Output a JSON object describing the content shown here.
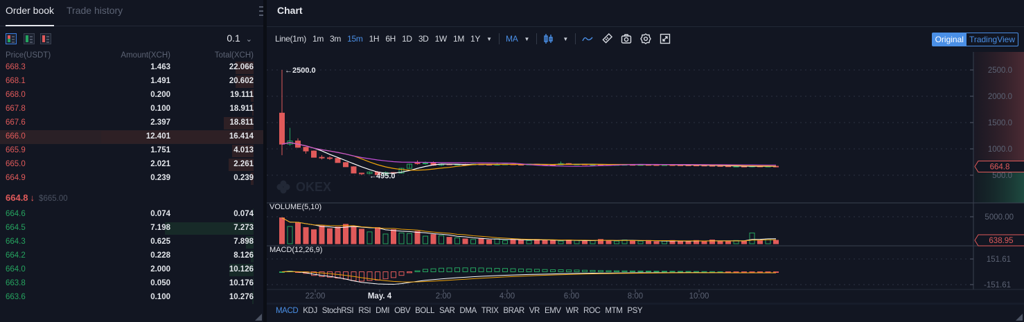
{
  "orderbook": {
    "tabs": [
      "Order book",
      "Trade history"
    ],
    "precision": "0.1",
    "headers": {
      "price": "Price(USDT)",
      "amount": "Amount(XCH)",
      "total": "Total(XCH)"
    },
    "asks": [
      {
        "price": "668.3",
        "amount": "1.463",
        "total": "22.066"
      },
      {
        "price": "668.1",
        "amount": "1.491",
        "total": "20.602"
      },
      {
        "price": "668.0",
        "amount": "0.200",
        "total": "19.111"
      },
      {
        "price": "667.8",
        "amount": "0.100",
        "total": "18.911"
      },
      {
        "price": "667.6",
        "amount": "2.397",
        "total": "18.811"
      },
      {
        "price": "666.0",
        "amount": "12.401",
        "total": "16.414"
      },
      {
        "price": "665.9",
        "amount": "1.751",
        "total": "4.013"
      },
      {
        "price": "665.0",
        "amount": "2.021",
        "total": "2.261"
      },
      {
        "price": "664.9",
        "amount": "0.239",
        "total": "0.239"
      }
    ],
    "last_price": "664.8",
    "last_direction": "↓",
    "last_usd": "$665.00",
    "bids": [
      {
        "price": "664.6",
        "amount": "0.074",
        "total": "0.074"
      },
      {
        "price": "664.5",
        "amount": "7.198",
        "total": "7.273"
      },
      {
        "price": "664.3",
        "amount": "0.625",
        "total": "7.898"
      },
      {
        "price": "664.2",
        "amount": "0.228",
        "total": "8.126"
      },
      {
        "price": "664.0",
        "amount": "2.000",
        "total": "10.126"
      },
      {
        "price": "663.8",
        "amount": "0.050",
        "total": "10.176"
      },
      {
        "price": "663.6",
        "amount": "0.100",
        "total": "10.276"
      }
    ],
    "colors": {
      "ask": "#e05a5a",
      "bid": "#25a35f"
    }
  },
  "chart": {
    "title": "Chart",
    "intervals": [
      "Line(1m)",
      "1m",
      "3m",
      "15m",
      "1H",
      "6H",
      "1D",
      "3D",
      "1W",
      "1M",
      "1Y"
    ],
    "active_interval": "15m",
    "indicator_main": "MA",
    "icons": [
      "candlestick-icon",
      "line-style-icon",
      "ruler-icon",
      "camera-icon",
      "gear-icon",
      "fullscreen-icon"
    ],
    "mode": {
      "original": "Original",
      "tradingview": "TradingView",
      "active": "Original"
    },
    "price_axis": [
      "2500.0",
      "2000.0",
      "1500.0",
      "1000.0",
      "500.0"
    ],
    "current_price_label": "664.8",
    "high_label": "2500.0",
    "low_label": "495.0",
    "watermark": "OKEX",
    "volume_label": "VOLUME(5,10)",
    "volume_axis": "5000.00",
    "volume_current": "638.95",
    "macd_label": "MACD(12,26,9)",
    "macd_axis": [
      "151.61",
      "-151.61"
    ],
    "time_axis": [
      "22:00",
      "May. 4",
      "2:00",
      "4:00",
      "6:00",
      "8:00",
      "10:00"
    ],
    "indicators": [
      "MACD",
      "KDJ",
      "StochRSI",
      "RSI",
      "DMI",
      "OBV",
      "BOLL",
      "SAR",
      "DMA",
      "TRIX",
      "BRAR",
      "VR",
      "EMV",
      "WR",
      "ROC",
      "MTM",
      "PSY"
    ],
    "active_indicator": "MACD",
    "colors": {
      "up": "#25a35f",
      "down": "#e05a5a",
      "accent": "#4a8fe6",
      "ma5": "#ffffff",
      "ma10": "#f0a30a",
      "ma30": "#c34fd6"
    }
  },
  "chart_data": {
    "type": "candlestick",
    "interval": "15m",
    "ylim": [
      0,
      2900
    ],
    "ohlc": [
      [
        1680,
        2500,
        880,
        1090
      ],
      [
        1090,
        1400,
        1060,
        1150
      ],
      [
        1150,
        1200,
        1020,
        1030
      ],
      [
        1030,
        1040,
        910,
        960
      ],
      [
        960,
        970,
        840,
        840
      ],
      [
        840,
        880,
        800,
        830
      ],
      [
        830,
        860,
        790,
        820
      ],
      [
        820,
        830,
        740,
        740
      ],
      [
        740,
        750,
        660,
        660
      ],
      [
        660,
        670,
        540,
        540
      ],
      [
        540,
        545,
        500,
        530
      ],
      [
        530,
        570,
        520,
        560
      ],
      [
        560,
        580,
        495,
        510
      ],
      [
        510,
        570,
        500,
        550
      ],
      [
        550,
        560,
        520,
        540
      ],
      [
        540,
        640,
        530,
        630
      ],
      [
        630,
        720,
        620,
        710
      ],
      [
        740,
        780,
        700,
        720
      ],
      [
        720,
        760,
        700,
        730
      ],
      [
        730,
        760,
        680,
        690
      ],
      [
        690,
        720,
        670,
        710
      ],
      [
        710,
        720,
        690,
        700
      ],
      [
        700,
        710,
        690,
        705
      ],
      [
        705,
        715,
        695,
        700
      ],
      [
        700,
        720,
        690,
        710
      ],
      [
        710,
        715,
        700,
        705
      ],
      [
        705,
        710,
        695,
        700
      ],
      [
        700,
        740,
        695,
        705
      ],
      [
        705,
        715,
        698,
        710
      ],
      [
        710,
        720,
        700,
        705
      ],
      [
        705,
        712,
        698,
        702
      ],
      [
        702,
        710,
        695,
        708
      ],
      [
        708,
        712,
        700,
        704
      ],
      [
        704,
        710,
        698,
        700
      ],
      [
        700,
        705,
        692,
        698
      ],
      [
        698,
        760,
        695,
        720
      ],
      [
        720,
        730,
        700,
        705
      ],
      [
        705,
        715,
        698,
        710
      ],
      [
        710,
        712,
        700,
        702
      ],
      [
        702,
        708,
        696,
        704
      ],
      [
        704,
        710,
        698,
        700
      ],
      [
        700,
        706,
        694,
        698
      ],
      [
        698,
        704,
        692,
        700
      ],
      [
        700,
        706,
        695,
        702
      ],
      [
        702,
        708,
        697,
        699
      ],
      [
        699,
        704,
        694,
        701
      ],
      [
        701,
        706,
        696,
        698
      ],
      [
        698,
        702,
        690,
        695
      ],
      [
        695,
        700,
        688,
        697
      ],
      [
        697,
        702,
        690,
        694
      ],
      [
        694,
        700,
        686,
        692
      ],
      [
        692,
        698,
        684,
        690
      ],
      [
        690,
        696,
        680,
        688
      ],
      [
        688,
        694,
        676,
        684
      ],
      [
        684,
        690,
        672,
        680
      ],
      [
        680,
        686,
        668,
        675
      ],
      [
        675,
        682,
        660,
        668
      ],
      [
        668,
        676,
        655,
        670
      ],
      [
        670,
        678,
        660,
        666
      ],
      [
        666,
        674,
        650,
        672
      ],
      [
        672,
        680,
        660,
        668
      ],
      [
        668,
        676,
        658,
        670
      ],
      [
        670,
        678,
        660,
        664.8
      ]
    ],
    "volume": [
      4800,
      3200,
      3900,
      3000,
      2600,
      3300,
      2800,
      3100,
      3600,
      3200,
      2700,
      2200,
      3000,
      1800,
      2600,
      2000,
      1900,
      2300,
      1400,
      1700,
      1500,
      1200,
      1100,
      900,
      800,
      1000,
      700,
      900,
      600,
      800,
      700,
      600,
      800,
      700,
      600,
      500,
      700,
      600,
      500,
      600,
      800,
      600,
      500,
      700,
      600,
      500,
      600,
      400,
      500,
      600,
      500,
      400,
      600,
      500,
      700,
      500,
      400,
      600,
      500,
      2000,
      600,
      900,
      638.95
    ]
  }
}
